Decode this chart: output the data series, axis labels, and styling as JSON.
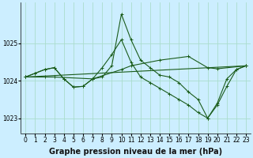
{
  "title": "Graphe pression niveau de la mer (hPa)",
  "bg_color": "#cceeff",
  "grid_color": "#aaddcc",
  "line_color": "#1a5c1a",
  "xlim": [
    -0.5,
    23.5
  ],
  "ylim": [
    1022.6,
    1026.1
  ],
  "yticks": [
    1023,
    1024,
    1025
  ],
  "xticks": [
    0,
    1,
    2,
    3,
    4,
    5,
    6,
    7,
    8,
    9,
    10,
    11,
    12,
    13,
    14,
    15,
    16,
    17,
    18,
    19,
    20,
    21,
    22,
    23
  ],
  "series1_x": [
    0,
    1,
    2,
    3,
    4,
    5,
    6,
    7,
    8,
    9,
    10,
    11,
    12,
    13,
    14,
    15,
    16,
    17,
    18,
    19,
    20,
    21,
    22,
    23
  ],
  "series1_y": [
    1024.1,
    1024.2,
    1024.3,
    1024.35,
    1024.05,
    1023.83,
    1023.85,
    1024.05,
    1024.1,
    1024.4,
    1025.78,
    1025.1,
    1024.55,
    1024.35,
    1024.15,
    1024.1,
    1023.95,
    1023.7,
    1023.5,
    1023.0,
    1023.4,
    1024.05,
    1024.3,
    1024.4
  ],
  "series2_x": [
    0,
    1,
    2,
    3,
    4,
    5,
    6,
    7,
    8,
    9,
    10,
    11,
    12,
    13,
    14,
    15,
    16,
    17,
    18,
    19,
    20,
    21,
    22,
    23
  ],
  "series2_y": [
    1024.1,
    1024.2,
    1024.3,
    1024.35,
    1024.05,
    1023.83,
    1023.85,
    1024.05,
    1024.35,
    1024.7,
    1025.1,
    1024.5,
    1024.1,
    1023.95,
    1023.8,
    1023.65,
    1023.5,
    1023.35,
    1023.15,
    1023.0,
    1023.35,
    1023.85,
    1024.3,
    1024.4
  ],
  "series3_x": [
    0,
    23
  ],
  "series3_y": [
    1024.1,
    1024.4
  ],
  "xlabel_fontsize": 7,
  "tick_fontsize": 5.5,
  "marker": "+",
  "lw": 0.8,
  "ms": 2.5,
  "mew": 0.7
}
